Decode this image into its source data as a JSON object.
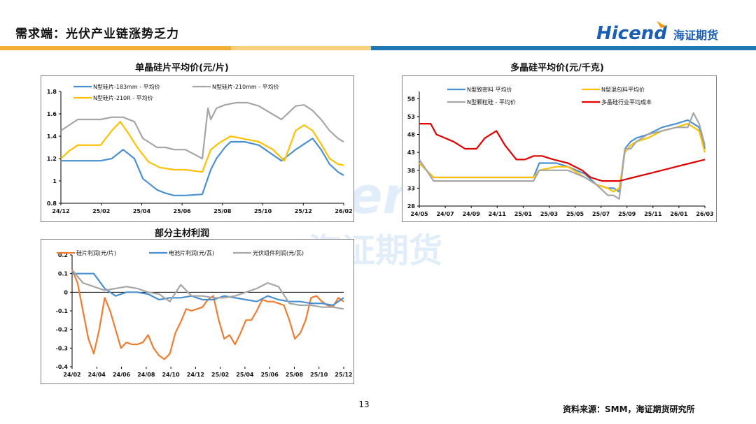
{
  "page": {
    "title": "需求端：光伏产业链涨势乏力",
    "page_number": "13",
    "source": "资料来源：SMM，海证期货研究所",
    "logo_text": "Hicend",
    "logo_cn": "海证期货",
    "watermark_text": "Hicend",
    "watermark_cn": "海证期货",
    "colors": {
      "stripe_orange": "#f2b134",
      "stripe_blue": "#1f77b4",
      "logo_blue": "#1a5fb4",
      "logo_orange": "#f39c12"
    }
  },
  "chart_data": [
    {
      "type": "line",
      "title": "单晶硅片平均价(元/片)",
      "ylim": [
        0.8,
        1.8
      ],
      "yticks": [
        "0.8",
        "1",
        "1.2",
        "1.4",
        "1.6",
        "1.8"
      ],
      "xlim": [
        0,
        100
      ],
      "xticks": [
        "24/12",
        "25/02",
        "25/04",
        "25/06",
        "25/08",
        "25/10",
        "25/12",
        "26/02"
      ],
      "legend_position": "top",
      "series": [
        {
          "name": "N型硅片-183mm - 平均价",
          "color": "#4a90d0",
          "x": [
            0,
            3,
            6,
            9,
            14,
            18,
            22,
            26,
            29,
            34,
            37,
            40,
            44,
            50,
            53,
            55,
            58,
            60,
            62,
            65,
            70,
            78,
            83,
            89,
            92,
            95,
            98,
            100
          ],
          "y": [
            1.18,
            1.18,
            1.18,
            1.18,
            1.18,
            1.2,
            1.28,
            1.2,
            1.02,
            0.92,
            0.89,
            0.87,
            0.87,
            0.88,
            1.1,
            1.2,
            1.3,
            1.35,
            1.35,
            1.35,
            1.32,
            1.18,
            1.28,
            1.38,
            1.28,
            1.15,
            1.08,
            1.05
          ]
        },
        {
          "name": "N型硅片-210mm - 平均价",
          "color": "#a6a6a6",
          "x": [
            0,
            3,
            6,
            9,
            14,
            18,
            22,
            26,
            29,
            34,
            37,
            40,
            44,
            50,
            52,
            53,
            55,
            58,
            62,
            66,
            70,
            78,
            83,
            86,
            89,
            92,
            95,
            98,
            100
          ],
          "y": [
            1.45,
            1.5,
            1.55,
            1.55,
            1.55,
            1.57,
            1.57,
            1.53,
            1.38,
            1.3,
            1.3,
            1.28,
            1.28,
            1.2,
            1.65,
            1.55,
            1.65,
            1.68,
            1.7,
            1.7,
            1.67,
            1.55,
            1.67,
            1.68,
            1.63,
            1.55,
            1.45,
            1.38,
            1.35
          ]
        },
        {
          "name": "N型硅片-210R - 平均价",
          "color": "#ffc000",
          "x": [
            0,
            3,
            6,
            9,
            14,
            18,
            21,
            24,
            27,
            31,
            35,
            40,
            44,
            50,
            53,
            56,
            60,
            64,
            70,
            75,
            79,
            83,
            86,
            89,
            92,
            95,
            98,
            100
          ],
          "y": [
            1.2,
            1.27,
            1.32,
            1.32,
            1.32,
            1.45,
            1.53,
            1.42,
            1.3,
            1.17,
            1.12,
            1.1,
            1.1,
            1.08,
            1.28,
            1.34,
            1.4,
            1.38,
            1.35,
            1.28,
            1.18,
            1.45,
            1.5,
            1.45,
            1.33,
            1.2,
            1.15,
            1.14
          ]
        }
      ]
    },
    {
      "type": "line",
      "title": "多晶硅平均价(元/千克)",
      "ylim": [
        28,
        60
      ],
      "yticks": [
        "28",
        "33",
        "38",
        "43",
        "48",
        "53",
        "58"
      ],
      "xlim": [
        0,
        100
      ],
      "xticks": [
        "24/05",
        "24/07",
        "24/09",
        "24/11",
        "25/01",
        "25/03",
        "25/05",
        "25/07",
        "25/09",
        "25/11",
        "26/01",
        "26/03"
      ],
      "legend_position": "top",
      "series": [
        {
          "name": "N型致密料 平均价",
          "color": "#4a90d0",
          "x": [
            0,
            5,
            10,
            20,
            30,
            40,
            42,
            48,
            52,
            58,
            62,
            66,
            68,
            70,
            72,
            74,
            76,
            80,
            85,
            90,
            94,
            96,
            98,
            100
          ],
          "y": [
            40,
            36,
            36,
            36,
            36,
            36,
            40,
            40,
            39,
            37,
            34,
            33,
            33,
            32,
            44,
            46,
            47,
            48,
            50,
            51,
            52,
            51,
            50,
            44
          ]
        },
        {
          "name": "N型混包料平均价",
          "color": "#ffc000",
          "x": [
            0,
            5,
            10,
            20,
            30,
            40,
            42,
            48,
            52,
            58,
            62,
            66,
            68,
            70,
            72,
            74,
            76,
            80,
            85,
            90,
            94,
            96,
            98,
            100
          ],
          "y": [
            40,
            36,
            36,
            36,
            36,
            36,
            38,
            39,
            39,
            36,
            34,
            33,
            32,
            33,
            43,
            45,
            46,
            47,
            49,
            50,
            51,
            50,
            49,
            43
          ]
        },
        {
          "name": "N型颗粒硅 - 平均价",
          "color": "#a6a6a6",
          "x": [
            0,
            5,
            10,
            20,
            30,
            40,
            42,
            48,
            52,
            58,
            62,
            66,
            68,
            70,
            72,
            74,
            76,
            80,
            85,
            90,
            94,
            96,
            98,
            100
          ],
          "y": [
            41,
            35,
            35,
            35,
            35,
            35,
            38,
            38,
            38,
            36,
            34,
            31,
            31,
            30,
            44,
            44,
            46,
            48,
            49,
            50,
            50,
            54,
            51,
            45
          ]
        },
        {
          "name": "多晶硅行业平均成本",
          "color": "#e00000",
          "x": [
            0,
            4,
            6,
            9,
            12,
            16,
            20,
            23,
            27,
            30,
            34,
            37,
            40,
            43,
            47,
            52,
            57,
            60,
            64,
            68,
            70,
            75,
            80,
            85,
            90,
            95,
            100
          ],
          "y": [
            51,
            51,
            48,
            47,
            46,
            44,
            44,
            47,
            49,
            45,
            41,
            41,
            42,
            42,
            41,
            40,
            38,
            36,
            35,
            35,
            35,
            36,
            37,
            38,
            39,
            40,
            41
          ]
        }
      ]
    },
    {
      "type": "line",
      "title": "部分主材利润",
      "ylim": [
        -0.4,
        0.2
      ],
      "yticks": [
        "-0.4",
        "-0.3",
        "-0.2",
        "-0.1",
        "0",
        "0.1",
        "0.2"
      ],
      "xlim": [
        0,
        100
      ],
      "xticks": [
        "24/02",
        "24/04",
        "24/06",
        "24/08",
        "24/10",
        "24/12",
        "25/02",
        "25/04",
        "25/06",
        "25/08",
        "25/10",
        "25/12"
      ],
      "legend_position": "top",
      "series": [
        {
          "name": "硅片利润(元/片)",
          "color": "#ed7d31",
          "x": [
            0,
            2,
            4,
            6,
            8,
            10,
            12,
            14,
            16,
            18,
            20,
            22,
            24,
            26,
            28,
            30,
            32,
            34,
            36,
            38,
            40,
            42,
            44,
            46,
            48,
            50,
            52,
            54,
            56,
            58,
            60,
            62,
            64,
            66,
            68,
            70,
            72,
            74,
            76,
            78,
            80,
            82,
            84,
            86,
            88,
            90,
            92,
            94,
            96,
            98,
            100
          ],
          "y": [
            0.12,
            0.05,
            -0.1,
            -0.25,
            -0.33,
            -0.2,
            -0.03,
            -0.1,
            -0.2,
            -0.3,
            -0.27,
            -0.28,
            -0.28,
            -0.27,
            -0.23,
            -0.3,
            -0.34,
            -0.36,
            -0.33,
            -0.22,
            -0.16,
            -0.09,
            -0.1,
            -0.09,
            -0.08,
            -0.04,
            -0.02,
            -0.15,
            -0.25,
            -0.23,
            -0.28,
            -0.22,
            -0.15,
            -0.15,
            -0.1,
            -0.04,
            -0.05,
            -0.05,
            -0.06,
            -0.07,
            -0.15,
            -0.25,
            -0.22,
            -0.15,
            -0.03,
            -0.02,
            -0.05,
            -0.07,
            -0.08,
            -0.03,
            -0.05
          ]
        },
        {
          "name": "电池片利润(元/瓦)",
          "color": "#4a90d0",
          "x": [
            0,
            4,
            8,
            12,
            16,
            20,
            24,
            28,
            32,
            36,
            40,
            44,
            48,
            52,
            56,
            60,
            64,
            68,
            72,
            76,
            80,
            84,
            88,
            92,
            96,
            100
          ],
          "y": [
            0.1,
            0.1,
            0.1,
            0.02,
            -0.02,
            0.0,
            0.0,
            -0.01,
            -0.04,
            -0.03,
            -0.03,
            -0.02,
            -0.04,
            -0.04,
            -0.02,
            -0.03,
            -0.04,
            -0.05,
            -0.02,
            -0.04,
            -0.05,
            -0.05,
            -0.06,
            -0.06,
            -0.07,
            -0.03
          ]
        },
        {
          "name": "光伏组件利润(元/瓦)",
          "color": "#a6a6a6",
          "x": [
            0,
            4,
            8,
            12,
            16,
            20,
            24,
            28,
            32,
            36,
            40,
            44,
            48,
            52,
            56,
            60,
            64,
            68,
            72,
            76,
            80,
            84,
            88,
            92,
            96,
            100
          ],
          "y": [
            0.12,
            0.05,
            0.03,
            0.01,
            0.02,
            0.03,
            0.02,
            0.0,
            -0.01,
            -0.05,
            0.04,
            -0.02,
            -0.02,
            -0.03,
            -0.03,
            -0.02,
            0.0,
            0.02,
            0.05,
            0.03,
            -0.06,
            -0.07,
            -0.07,
            -0.08,
            -0.08,
            -0.09
          ]
        }
      ]
    }
  ]
}
